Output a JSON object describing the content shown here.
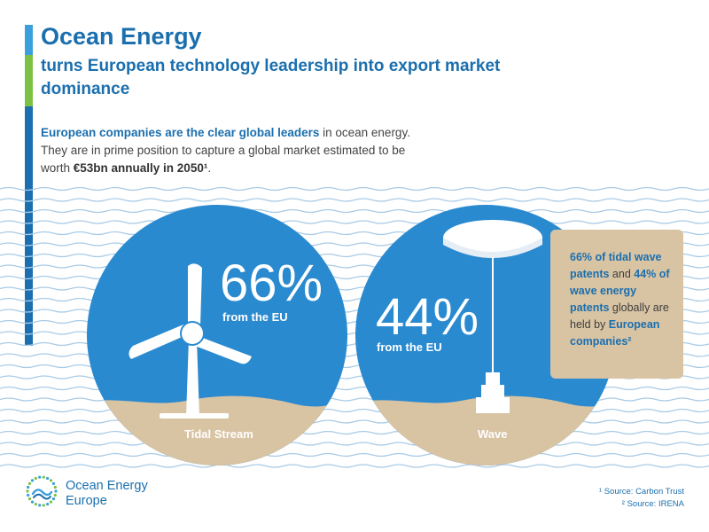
{
  "header": {
    "title": "Ocean Energy",
    "subtitle": "turns European technology leadership into export market dominance"
  },
  "intro": {
    "lead_bold": "European companies are the clear global leaders",
    "text_1": " in ocean energy. They are in prime position to capture a global market estimated to be worth ",
    "value_bold": "€53bn annually in 2050",
    "footnote_mark": "¹",
    "text_end": "."
  },
  "tidal": {
    "percent": "66%",
    "from_label": "from the EU",
    "label": "Tidal Stream",
    "icon": "tidal-turbine-icon"
  },
  "wave": {
    "percent": "44%",
    "from_label": "from the EU",
    "label": "Wave",
    "icon": "wave-buoy-icon"
  },
  "callout": {
    "part1": "66% of tidal wave patents",
    "part2": " and ",
    "part3": "44% of wave energy patents",
    "part4": " globally are held by ",
    "part5": "European companies²"
  },
  "logo": {
    "line1": "Ocean Energy",
    "line2": "Europe",
    "icon": "ocean-energy-europe-logo-icon"
  },
  "sources": {
    "source1": "¹ Source: Carbon Trust",
    "source2": "² Source: IRENA"
  },
  "colors": {
    "primary_blue": "#1b6fae",
    "circle_blue": "#2a8ad0",
    "sand": "#d8c3a3",
    "wave_line": "#a9cbe6",
    "accent_green": "#7cc142",
    "accent_light_blue": "#3aa0dc"
  }
}
